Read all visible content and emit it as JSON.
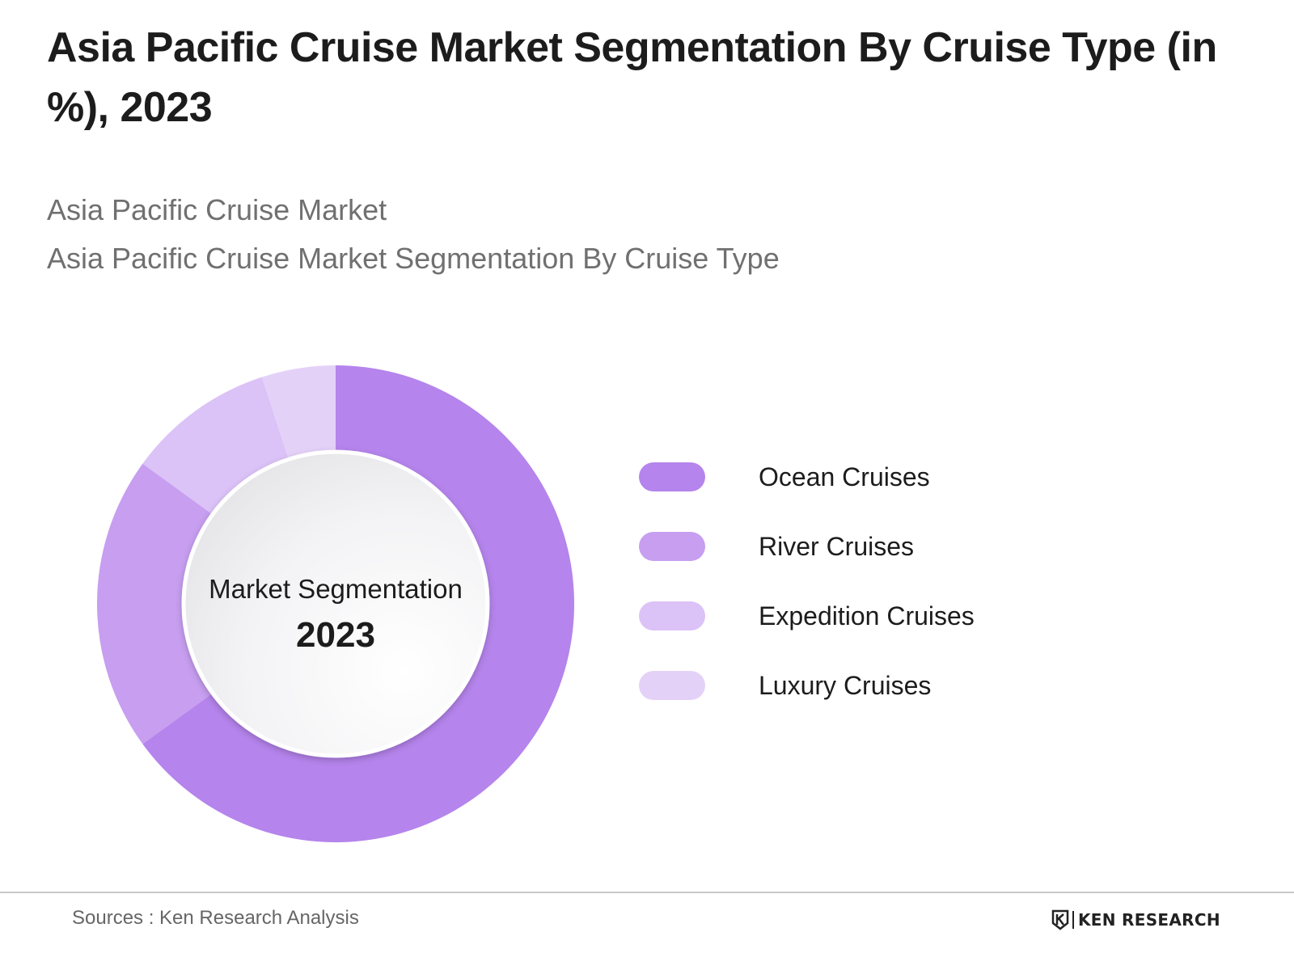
{
  "title": "Asia Pacific Cruise Market Segmentation By Cruise Type (in %), 2023",
  "subtitles": [
    "Asia Pacific Cruise Market",
    "Asia Pacific Cruise Market Segmentation By Cruise Type"
  ],
  "center_label": {
    "line1": "Market Segmentation",
    "line2": "2023"
  },
  "chart_data": {
    "type": "pie",
    "subtype": "donut",
    "unit": "%",
    "start_angle": "12 o'clock",
    "direction": "clockwise",
    "categories": [
      "Ocean Cruises",
      "River Cruises",
      "Expedition Cruises",
      "Luxury Cruises"
    ],
    "values": [
      65,
      20,
      10,
      5
    ],
    "colors": [
      "#b584ec",
      "#c79ef0",
      "#dbc2f7",
      "#e4d1f8"
    ],
    "legend_position": "right",
    "data_labels": false
  },
  "legend": {
    "items": [
      {
        "label": "Ocean Cruises",
        "color": "#b584ec"
      },
      {
        "label": "River Cruises",
        "color": "#c79ef0"
      },
      {
        "label": "Expedition Cruises",
        "color": "#dbc2f7"
      },
      {
        "label": "Luxury Cruises",
        "color": "#e4d1f8"
      }
    ]
  },
  "footer": {
    "source": "Sources : Ken Research Analysis",
    "brand": "KEN RESEARCH",
    "brand_icon": "ken-research-logo-icon"
  }
}
